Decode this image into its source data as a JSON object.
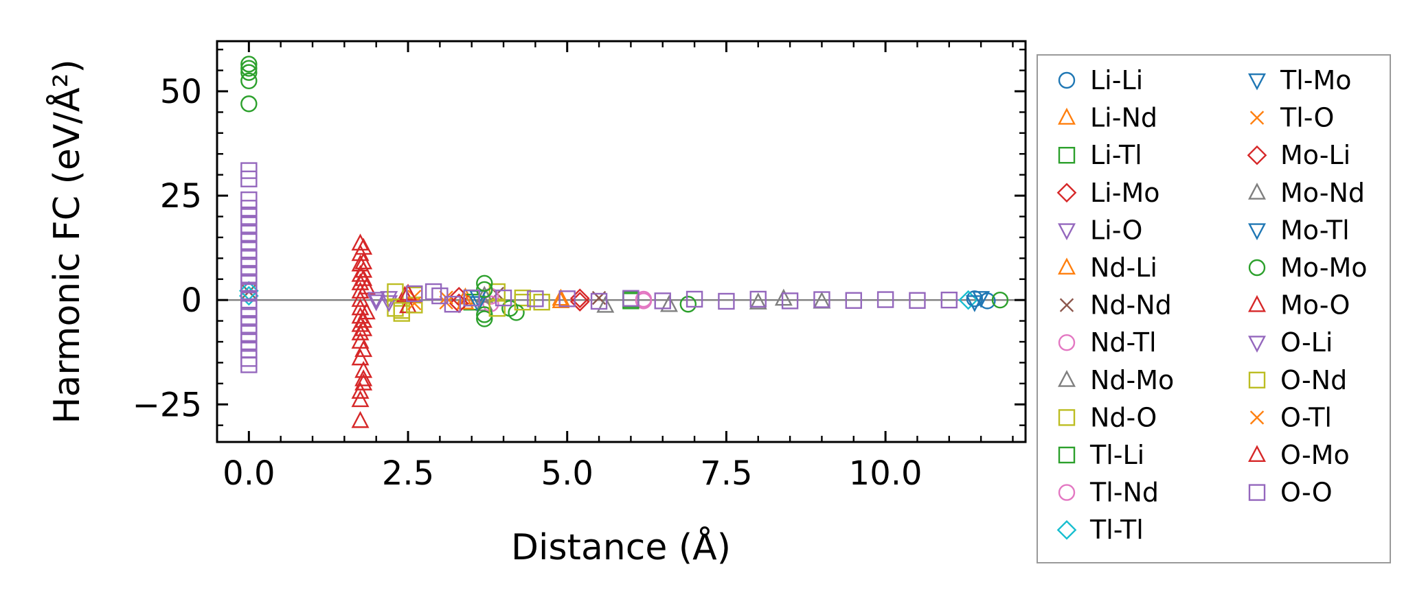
{
  "chart_data": {
    "type": "scatter",
    "xlabel": "Distance (Å)",
    "ylabel": "Harmonic FC (eV/Å²)",
    "xlim": [
      -0.5,
      12.2
    ],
    "ylim": [
      -34,
      62
    ],
    "xticks": [
      0.0,
      2.5,
      5.0,
      7.5,
      10.0
    ],
    "xtick_labels": [
      "0.0",
      "2.5",
      "5.0",
      "7.5",
      "10.0"
    ],
    "yticks": [
      -25,
      0,
      25,
      50
    ],
    "ytick_labels": [
      "−25",
      "0",
      "25",
      "50"
    ],
    "zero_line": 0,
    "grid": false,
    "legend_position": "right, outside",
    "series": [
      {
        "name": "Li-Li",
        "marker": "circle",
        "color": "#1f77b4",
        "points": [
          [
            11.4,
            0.3
          ],
          [
            11.6,
            -0.2
          ]
        ]
      },
      {
        "name": "Li-Nd",
        "marker": "triangle-up",
        "color": "#ff7f0e",
        "points": [
          [
            3.4,
            0.6
          ],
          [
            4.9,
            -0.3
          ]
        ]
      },
      {
        "name": "Li-Tl",
        "marker": "square",
        "color": "#2ca02c",
        "points": [
          [
            3.5,
            -0.5
          ],
          [
            6.0,
            0.2
          ]
        ]
      },
      {
        "name": "Li-Mo",
        "marker": "diamond",
        "color": "#d62728",
        "points": [
          [
            3.3,
            0.8
          ],
          [
            5.2,
            -0.4
          ]
        ]
      },
      {
        "name": "Li-O",
        "marker": "triangle-down",
        "color": "#9467bd",
        "points": [
          [
            2.0,
            -0.3
          ],
          [
            2.2,
            0.5
          ]
        ]
      },
      {
        "name": "Nd-Li",
        "marker": "triangle-up",
        "color": "#ff7f0e",
        "points": [
          [
            3.4,
            -0.6
          ],
          [
            4.9,
            0.3
          ]
        ]
      },
      {
        "name": "Nd-Nd",
        "marker": "x",
        "color": "#8c564b",
        "points": [
          [
            0.0,
            2.0
          ],
          [
            3.9,
            1.5
          ],
          [
            5.5,
            0.5
          ]
        ]
      },
      {
        "name": "Nd-Tl",
        "marker": "circle",
        "color": "#e377c2",
        "points": [
          [
            3.8,
            0.9
          ],
          [
            6.2,
            -0.2
          ]
        ]
      },
      {
        "name": "Nd-Mo",
        "marker": "triangle-up",
        "color": "#7f7f7f",
        "points": [
          [
            3.7,
            -1.0
          ],
          [
            6.6,
            -1.2
          ],
          [
            8.0,
            -0.6
          ],
          [
            9.0,
            -0.4
          ]
        ]
      },
      {
        "name": "Nd-O",
        "marker": "square",
        "color": "#bcbd22",
        "points": [
          [
            2.3,
            -2.0
          ],
          [
            2.4,
            -3.2
          ],
          [
            2.6,
            1.2
          ],
          [
            3.9,
            2.0
          ],
          [
            4.3,
            0.5
          ]
        ]
      },
      {
        "name": "Tl-Li",
        "marker": "square",
        "color": "#2ca02c",
        "points": [
          [
            3.5,
            0.5
          ],
          [
            6.0,
            -0.2
          ]
        ]
      },
      {
        "name": "Tl-Nd",
        "marker": "circle",
        "color": "#e377c2",
        "points": [
          [
            3.8,
            -0.9
          ],
          [
            6.2,
            0.2
          ]
        ]
      },
      {
        "name": "Tl-Tl",
        "marker": "diamond",
        "color": "#17becf",
        "points": [
          [
            0.0,
            1.0
          ],
          [
            0.0,
            2.2
          ],
          [
            11.3,
            0.0
          ]
        ]
      },
      {
        "name": "Tl-Mo",
        "marker": "triangle-down",
        "color": "#1f77b4",
        "points": [
          [
            3.6,
            0.7
          ],
          [
            11.4,
            -0.5
          ]
        ]
      },
      {
        "name": "Tl-O",
        "marker": "x",
        "color": "#ff7f0e",
        "points": [
          [
            2.6,
            0.8
          ],
          [
            3.1,
            -0.6
          ]
        ]
      },
      {
        "name": "Mo-Li",
        "marker": "diamond",
        "color": "#d62728",
        "points": [
          [
            3.3,
            -0.8
          ],
          [
            5.2,
            0.4
          ]
        ]
      },
      {
        "name": "Mo-Nd",
        "marker": "triangle-up",
        "color": "#7f7f7f",
        "points": [
          [
            3.7,
            1.0
          ],
          [
            5.6,
            -1.4
          ],
          [
            8.4,
            0.3
          ]
        ]
      },
      {
        "name": "Mo-Tl",
        "marker": "triangle-down",
        "color": "#1f77b4",
        "points": [
          [
            3.6,
            -0.7
          ],
          [
            11.5,
            0.5
          ]
        ]
      },
      {
        "name": "Mo-Mo",
        "marker": "circle",
        "color": "#2ca02c",
        "points": [
          [
            0.0,
            47.0
          ],
          [
            0.0,
            52.5
          ],
          [
            0.0,
            54.5
          ],
          [
            0.0,
            55.5
          ],
          [
            0.0,
            56.5
          ],
          [
            3.7,
            4.0
          ],
          [
            3.7,
            2.5
          ],
          [
            3.7,
            -3.5
          ],
          [
            3.7,
            -4.5
          ],
          [
            4.1,
            -2.0
          ],
          [
            4.2,
            -3.0
          ],
          [
            6.9,
            -1.0
          ],
          [
            11.8,
            0.0
          ]
        ]
      },
      {
        "name": "Mo-O",
        "marker": "triangle-up",
        "color": "#d62728",
        "points": [
          [
            1.75,
            13.5
          ],
          [
            1.75,
            11.0
          ],
          [
            1.75,
            8.5
          ],
          [
            1.75,
            6.0
          ],
          [
            1.75,
            4.0
          ],
          [
            1.75,
            2.0
          ],
          [
            1.75,
            0.0
          ],
          [
            1.75,
            -2.0
          ],
          [
            1.75,
            -4.0
          ],
          [
            1.75,
            -6.0
          ],
          [
            1.75,
            -8.0
          ],
          [
            1.75,
            -10.0
          ],
          [
            1.75,
            -14.0
          ],
          [
            1.75,
            -22.0
          ],
          [
            1.75,
            -24.0
          ],
          [
            1.75,
            -29.0
          ],
          [
            1.8,
            9.0
          ],
          [
            1.8,
            5.0
          ],
          [
            1.8,
            -5.0
          ],
          [
            1.8,
            -12.0
          ],
          [
            1.8,
            -17.0
          ],
          [
            1.8,
            -19.0
          ],
          [
            1.85,
            3.0
          ],
          [
            1.85,
            -3.0
          ],
          [
            2.45,
            1.0
          ],
          [
            2.5,
            -1.5
          ]
        ]
      },
      {
        "name": "O-Li",
        "marker": "triangle-down",
        "color": "#9467bd",
        "points": [
          [
            2.0,
            0.3
          ],
          [
            2.2,
            -0.5
          ]
        ]
      },
      {
        "name": "O-Nd",
        "marker": "square",
        "color": "#bcbd22",
        "points": [
          [
            2.3,
            2.0
          ],
          [
            2.4,
            -2.5
          ],
          [
            2.6,
            -1.2
          ],
          [
            3.9,
            -2.0
          ],
          [
            4.3,
            -0.5
          ],
          [
            4.6,
            -0.5
          ]
        ]
      },
      {
        "name": "O-Tl",
        "marker": "x",
        "color": "#ff7f0e",
        "points": [
          [
            2.6,
            -0.8
          ],
          [
            3.1,
            0.6
          ]
        ]
      },
      {
        "name": "O-Mo",
        "marker": "triangle-up",
        "color": "#d62728",
        "points": [
          [
            1.8,
            12.5
          ],
          [
            1.8,
            7.0
          ],
          [
            1.8,
            -7.0
          ],
          [
            1.8,
            -20.0
          ],
          [
            2.5,
            1.5
          ]
        ]
      },
      {
        "name": "O-O",
        "marker": "square",
        "color": "#9467bd",
        "points": [
          [
            0.0,
            31.0
          ],
          [
            0.0,
            29.0
          ],
          [
            0.0,
            24.0
          ],
          [
            0.0,
            22.0
          ],
          [
            0.0,
            20.0
          ],
          [
            0.0,
            18.0
          ],
          [
            0.0,
            16.0
          ],
          [
            0.0,
            14.0
          ],
          [
            0.0,
            12.0
          ],
          [
            0.0,
            10.0
          ],
          [
            0.0,
            8.0
          ],
          [
            0.0,
            6.0
          ],
          [
            0.0,
            4.0
          ],
          [
            0.0,
            2.0
          ],
          [
            0.0,
            0.0
          ],
          [
            0.0,
            -2.0
          ],
          [
            0.0,
            -4.0
          ],
          [
            0.0,
            -6.0
          ],
          [
            0.0,
            -8.0
          ],
          [
            0.0,
            -10.0
          ],
          [
            0.0,
            -12.0
          ],
          [
            0.0,
            -14.0
          ],
          [
            0.0,
            -15.5
          ],
          [
            2.6,
            1.5
          ],
          [
            2.9,
            2.0
          ],
          [
            3.0,
            1.0
          ],
          [
            3.2,
            -1.0
          ],
          [
            3.5,
            0.5
          ],
          [
            4.0,
            0.5
          ],
          [
            4.5,
            0.3
          ],
          [
            5.0,
            0.3
          ],
          [
            5.5,
            -0.3
          ],
          [
            6.0,
            0.4
          ],
          [
            6.5,
            -0.2
          ],
          [
            7.0,
            0.2
          ],
          [
            7.5,
            -0.3
          ],
          [
            8.0,
            0.2
          ],
          [
            8.5,
            -0.2
          ],
          [
            9.0,
            0.1
          ],
          [
            9.5,
            -0.1
          ],
          [
            10.0,
            0.1
          ],
          [
            10.5,
            -0.1
          ],
          [
            11.0,
            0.0
          ]
        ]
      }
    ]
  }
}
